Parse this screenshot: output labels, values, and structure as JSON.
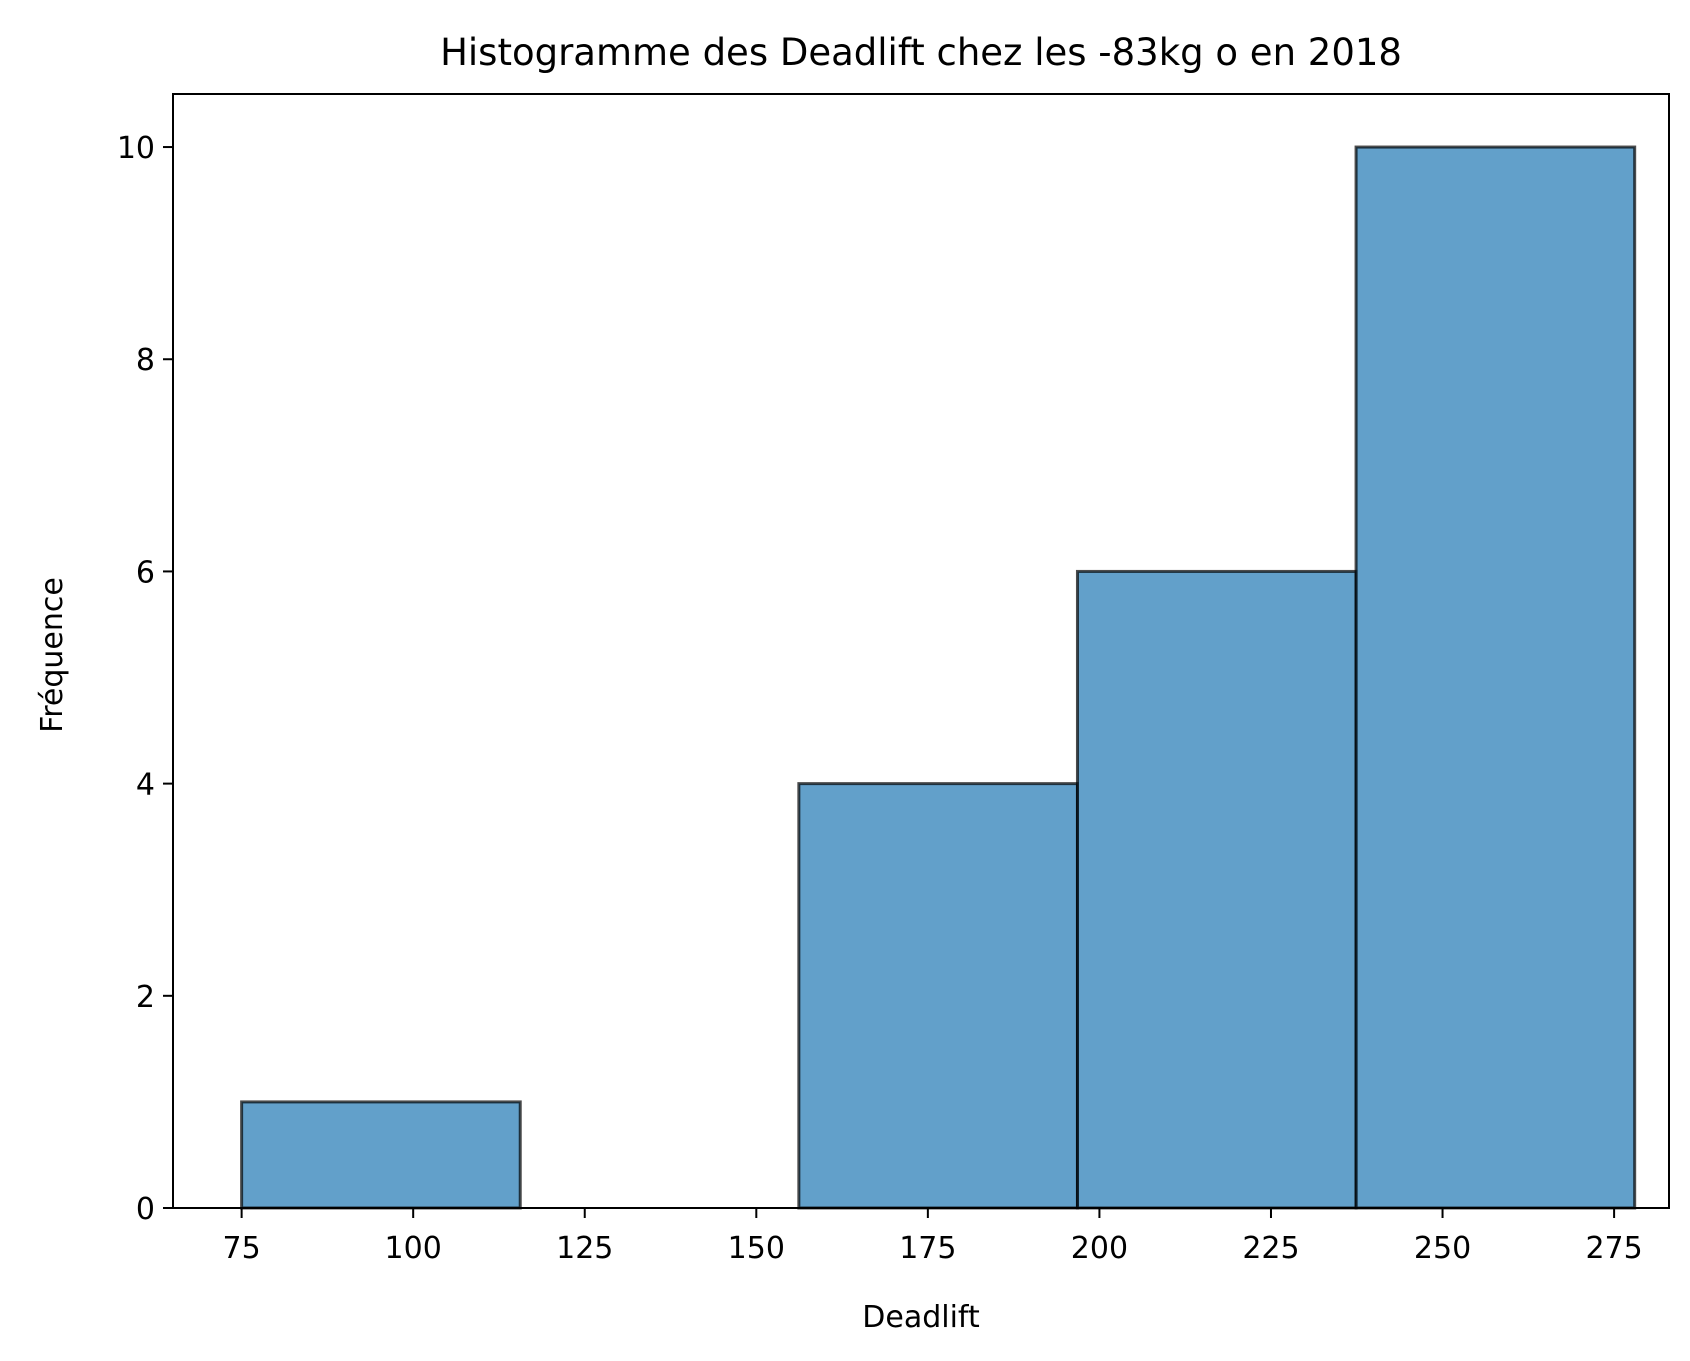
{
  "chart_data": {
    "type": "bar",
    "title": "Histogramme des Deadlift chez les -83kg o en 2018",
    "xlabel": "Deadlift",
    "ylabel": "Fréquence",
    "bins": [
      {
        "start": 75.0,
        "end": 115.6,
        "count": 1
      },
      {
        "start": 115.6,
        "end": 156.2,
        "count": 0
      },
      {
        "start": 156.2,
        "end": 196.8,
        "count": 4
      },
      {
        "start": 196.8,
        "end": 237.4,
        "count": 6
      },
      {
        "start": 237.4,
        "end": 278.0,
        "count": 10
      }
    ],
    "xlim": [
      65,
      283
    ],
    "ylim": [
      0,
      10.5
    ],
    "xticks": [
      75,
      100,
      125,
      150,
      175,
      200,
      225,
      250,
      275
    ],
    "yticks": [
      0,
      2,
      4,
      6,
      8,
      10
    ],
    "grid": false,
    "legend": "none",
    "colors": {
      "bar_fill": "#1f77b4",
      "bar_alpha": 0.7,
      "bar_edge": "#000000"
    }
  }
}
